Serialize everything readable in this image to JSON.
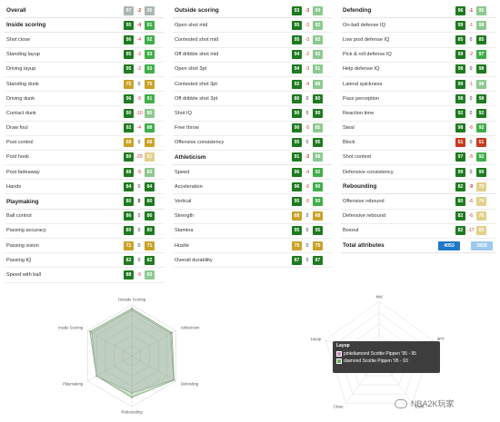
{
  "overall": {
    "label": "Overall",
    "a": "97",
    "d": "-2",
    "b": "95"
  },
  "inside_scoring": {
    "label": "Inside scoring",
    "a": "95",
    "d": "-4",
    "b": "91",
    "rows": [
      {
        "name": "Shot close",
        "a": "96",
        "d": "-4",
        "b": "92",
        "ca": "c-dg",
        "cb": "c-g"
      },
      {
        "name": "Standing layup",
        "a": "95",
        "d": "-2",
        "b": "93",
        "ca": "c-dg",
        "cb": "c-g"
      },
      {
        "name": "Driving layup",
        "a": "95",
        "d": "-2",
        "b": "93",
        "ca": "c-dg",
        "cb": "c-g"
      },
      {
        "name": "Standing dunk",
        "a": "75",
        "d": "0",
        "b": "75",
        "ca": "c-y",
        "cb": "c-y"
      },
      {
        "name": "Driving dunk",
        "a": "96",
        "d": "-5",
        "b": "91",
        "ca": "c-dg",
        "cb": "c-g"
      },
      {
        "name": "Contact dunk",
        "a": "90",
        "d": "-10",
        "b": "80",
        "ca": "c-dg",
        "cb": "c-lg"
      },
      {
        "name": "Draw foul",
        "a": "92",
        "d": "-4",
        "b": "88",
        "ca": "c-dg",
        "cb": "c-g"
      },
      {
        "name": "Post control",
        "b": "68",
        "a": "68",
        "d": "0",
        "ca": "c-y",
        "cb": "c-y"
      },
      {
        "name": "Post hook",
        "a": "80",
        "d": "-29",
        "b": "51",
        "ca": "c-dg",
        "cb": "c-ly"
      },
      {
        "name": "Post fadeaway",
        "a": "88",
        "d": "-5",
        "b": "83",
        "ca": "c-dg",
        "cb": "c-lg"
      },
      {
        "name": "Hands",
        "a": "84",
        "d": "0",
        "b": "84",
        "ca": "c-dg",
        "cb": "c-dg"
      }
    ]
  },
  "playmaking": {
    "label": "Playmaking",
    "a": "80",
    "d": "0",
    "b": "80",
    "rows": [
      {
        "name": "Ball control",
        "a": "86",
        "d": "0",
        "b": "86",
        "ca": "c-dg",
        "cb": "c-dg"
      },
      {
        "name": "Passing accuracy",
        "a": "80",
        "d": "0",
        "b": "80",
        "ca": "c-dg",
        "cb": "c-dg"
      },
      {
        "name": "Passing vision",
        "a": "71",
        "d": "0",
        "b": "71",
        "ca": "c-y",
        "cb": "c-y"
      },
      {
        "name": "Passing IQ",
        "a": "82",
        "d": "0",
        "b": "82",
        "ca": "c-dg",
        "cb": "c-dg"
      },
      {
        "name": "Speed with ball",
        "a": "88",
        "d": "-5",
        "b": "83",
        "ca": "c-dg",
        "cb": "c-lg"
      }
    ]
  },
  "outside_scoring": {
    "label": "Outside scoring",
    "a": "93",
    "d": "-3",
    "b": "90",
    "rows": [
      {
        "name": "Open shot mid",
        "a": "95",
        "d": "-3",
        "b": "92",
        "ca": "c-dg",
        "cb": "c-lg"
      },
      {
        "name": "Contested shot mid",
        "a": "95",
        "d": "-3",
        "b": "92",
        "ca": "c-dg",
        "cb": "c-lg"
      },
      {
        "name": "Off dribble shot mid",
        "a": "94",
        "d": "-2",
        "b": "92",
        "ca": "c-dg",
        "cb": "c-lg"
      },
      {
        "name": "Open shot 3pt",
        "a": "94",
        "d": "-3",
        "b": "91",
        "ca": "c-dg",
        "cb": "c-lg"
      },
      {
        "name": "Contested shot 3pt",
        "a": "92",
        "d": "-4",
        "b": "88",
        "ca": "c-dg",
        "cb": "c-lg"
      },
      {
        "name": "Off dribble shot 3pt",
        "a": "80",
        "d": "0",
        "b": "80",
        "ca": "c-dg",
        "cb": "c-dg"
      },
      {
        "name": "Shot IQ",
        "a": "90",
        "d": "0",
        "b": "90",
        "ca": "c-dg",
        "cb": "c-dg"
      },
      {
        "name": "Free throw",
        "a": "90",
        "d": "-5",
        "b": "85",
        "ca": "c-dg",
        "cb": "c-lg"
      },
      {
        "name": "Offensive consistency",
        "a": "95",
        "d": "0",
        "b": "95",
        "ca": "c-dg",
        "cb": "c-dg"
      }
    ]
  },
  "athleticism": {
    "label": "Athleticism",
    "a": "91",
    "d": "-3",
    "b": "88",
    "rows": [
      {
        "name": "Speed",
        "a": "96",
        "d": "-4",
        "b": "92",
        "ca": "c-dg",
        "cb": "c-g"
      },
      {
        "name": "Acceleration",
        "a": "96",
        "d": "-6",
        "b": "90",
        "ca": "c-dg",
        "cb": "c-g"
      },
      {
        "name": "Vertical",
        "a": "95",
        "d": "-5",
        "b": "90",
        "ca": "c-dg",
        "cb": "c-g"
      },
      {
        "name": "Strength",
        "a": "68",
        "d": "0",
        "b": "68",
        "ca": "c-y",
        "cb": "c-y"
      },
      {
        "name": "Stamina",
        "a": "95",
        "d": "0",
        "b": "95",
        "ca": "c-dg",
        "cb": "c-dg"
      },
      {
        "name": "Hustle",
        "a": "75",
        "d": "0",
        "b": "75",
        "ca": "c-y",
        "cb": "c-y"
      },
      {
        "name": "Overall durability",
        "a": "87",
        "d": "0",
        "b": "87",
        "ca": "c-dg",
        "cb": "c-dg"
      }
    ]
  },
  "defending": {
    "label": "Defending",
    "a": "96",
    "d": "-1",
    "b": "95",
    "rows": [
      {
        "name": "On-ball defense IQ",
        "a": "99",
        "d": "-1",
        "b": "98",
        "ca": "c-dg",
        "cb": "c-lg"
      },
      {
        "name": "Low post defense IQ",
        "a": "85",
        "d": "0",
        "b": "85",
        "ca": "c-dg",
        "cb": "c-dg"
      },
      {
        "name": "Pick & roll defense IQ",
        "a": "99",
        "d": "-2",
        "b": "97",
        "ca": "c-dg",
        "cb": "c-g"
      },
      {
        "name": "Help defense IQ",
        "a": "98",
        "d": "0",
        "b": "98",
        "ca": "c-dg",
        "cb": "c-dg"
      },
      {
        "name": "Lateral quickness",
        "a": "99",
        "d": "-1",
        "b": "98",
        "ca": "c-dg",
        "cb": "c-lg"
      },
      {
        "name": "Pass perception",
        "a": "98",
        "d": "0",
        "b": "98",
        "ca": "c-dg",
        "cb": "c-dg"
      },
      {
        "name": "Reaction time",
        "a": "92",
        "d": "0",
        "b": "92",
        "ca": "c-dg",
        "cb": "c-dg"
      },
      {
        "name": "Steal",
        "a": "98",
        "d": "-6",
        "b": "92",
        "ca": "c-dg",
        "cb": "c-g"
      },
      {
        "name": "Block",
        "a": "51",
        "d": "0",
        "b": "51",
        "ca": "c-r",
        "cb": "c-r"
      },
      {
        "name": "Shot contest",
        "a": "97",
        "d": "-5",
        "b": "92",
        "ca": "c-dg",
        "cb": "c-g"
      },
      {
        "name": "Defensive consistency",
        "a": "99",
        "d": "0",
        "b": "99",
        "ca": "c-dg",
        "cb": "c-dg"
      }
    ]
  },
  "rebounding": {
    "label": "Rebounding",
    "a": "82",
    "d": "-9",
    "b": "73",
    "rows": [
      {
        "name": "Offensive rebound",
        "a": "80",
        "d": "-6",
        "b": "74",
        "ca": "c-dg",
        "cb": "c-ly"
      },
      {
        "name": "Defensive rebound",
        "a": "82",
        "d": "-6",
        "b": "76",
        "ca": "c-dg",
        "cb": "c-ly"
      },
      {
        "name": "Boxout",
        "a": "82",
        "d": "-17",
        "b": "65",
        "ca": "c-dg",
        "cb": "c-ly"
      }
    ]
  },
  "total": {
    "label": "Total attributes",
    "a": "4053",
    "b": "3926"
  },
  "radar1": {
    "axes": [
      "Outside Scoring",
      "Athleticism",
      "Defending",
      "Rebounding",
      "Playmaking",
      "Inside Scoring"
    ],
    "series": [
      {
        "values": [
          93,
          91,
          96,
          82,
          80,
          95
        ],
        "color": "#7fae7a"
      },
      {
        "values": [
          90,
          88,
          95,
          73,
          80,
          91
        ],
        "color": "#9fa8a0"
      }
    ]
  },
  "radar2": {
    "axes": [
      "Mid",
      "3PT",
      "Dunk",
      "Close",
      "Layup"
    ]
  },
  "tooltip": {
    "title": "Layup",
    "lines": [
      {
        "text": "pinkdiamond Scottie Pippen '95 - 95",
        "color": "#c98bbf"
      },
      {
        "text": "diamond Scottie Pippen '95 - 93",
        "color": "#6fae5f"
      }
    ]
  },
  "watermark": "NBA2K玩家"
}
